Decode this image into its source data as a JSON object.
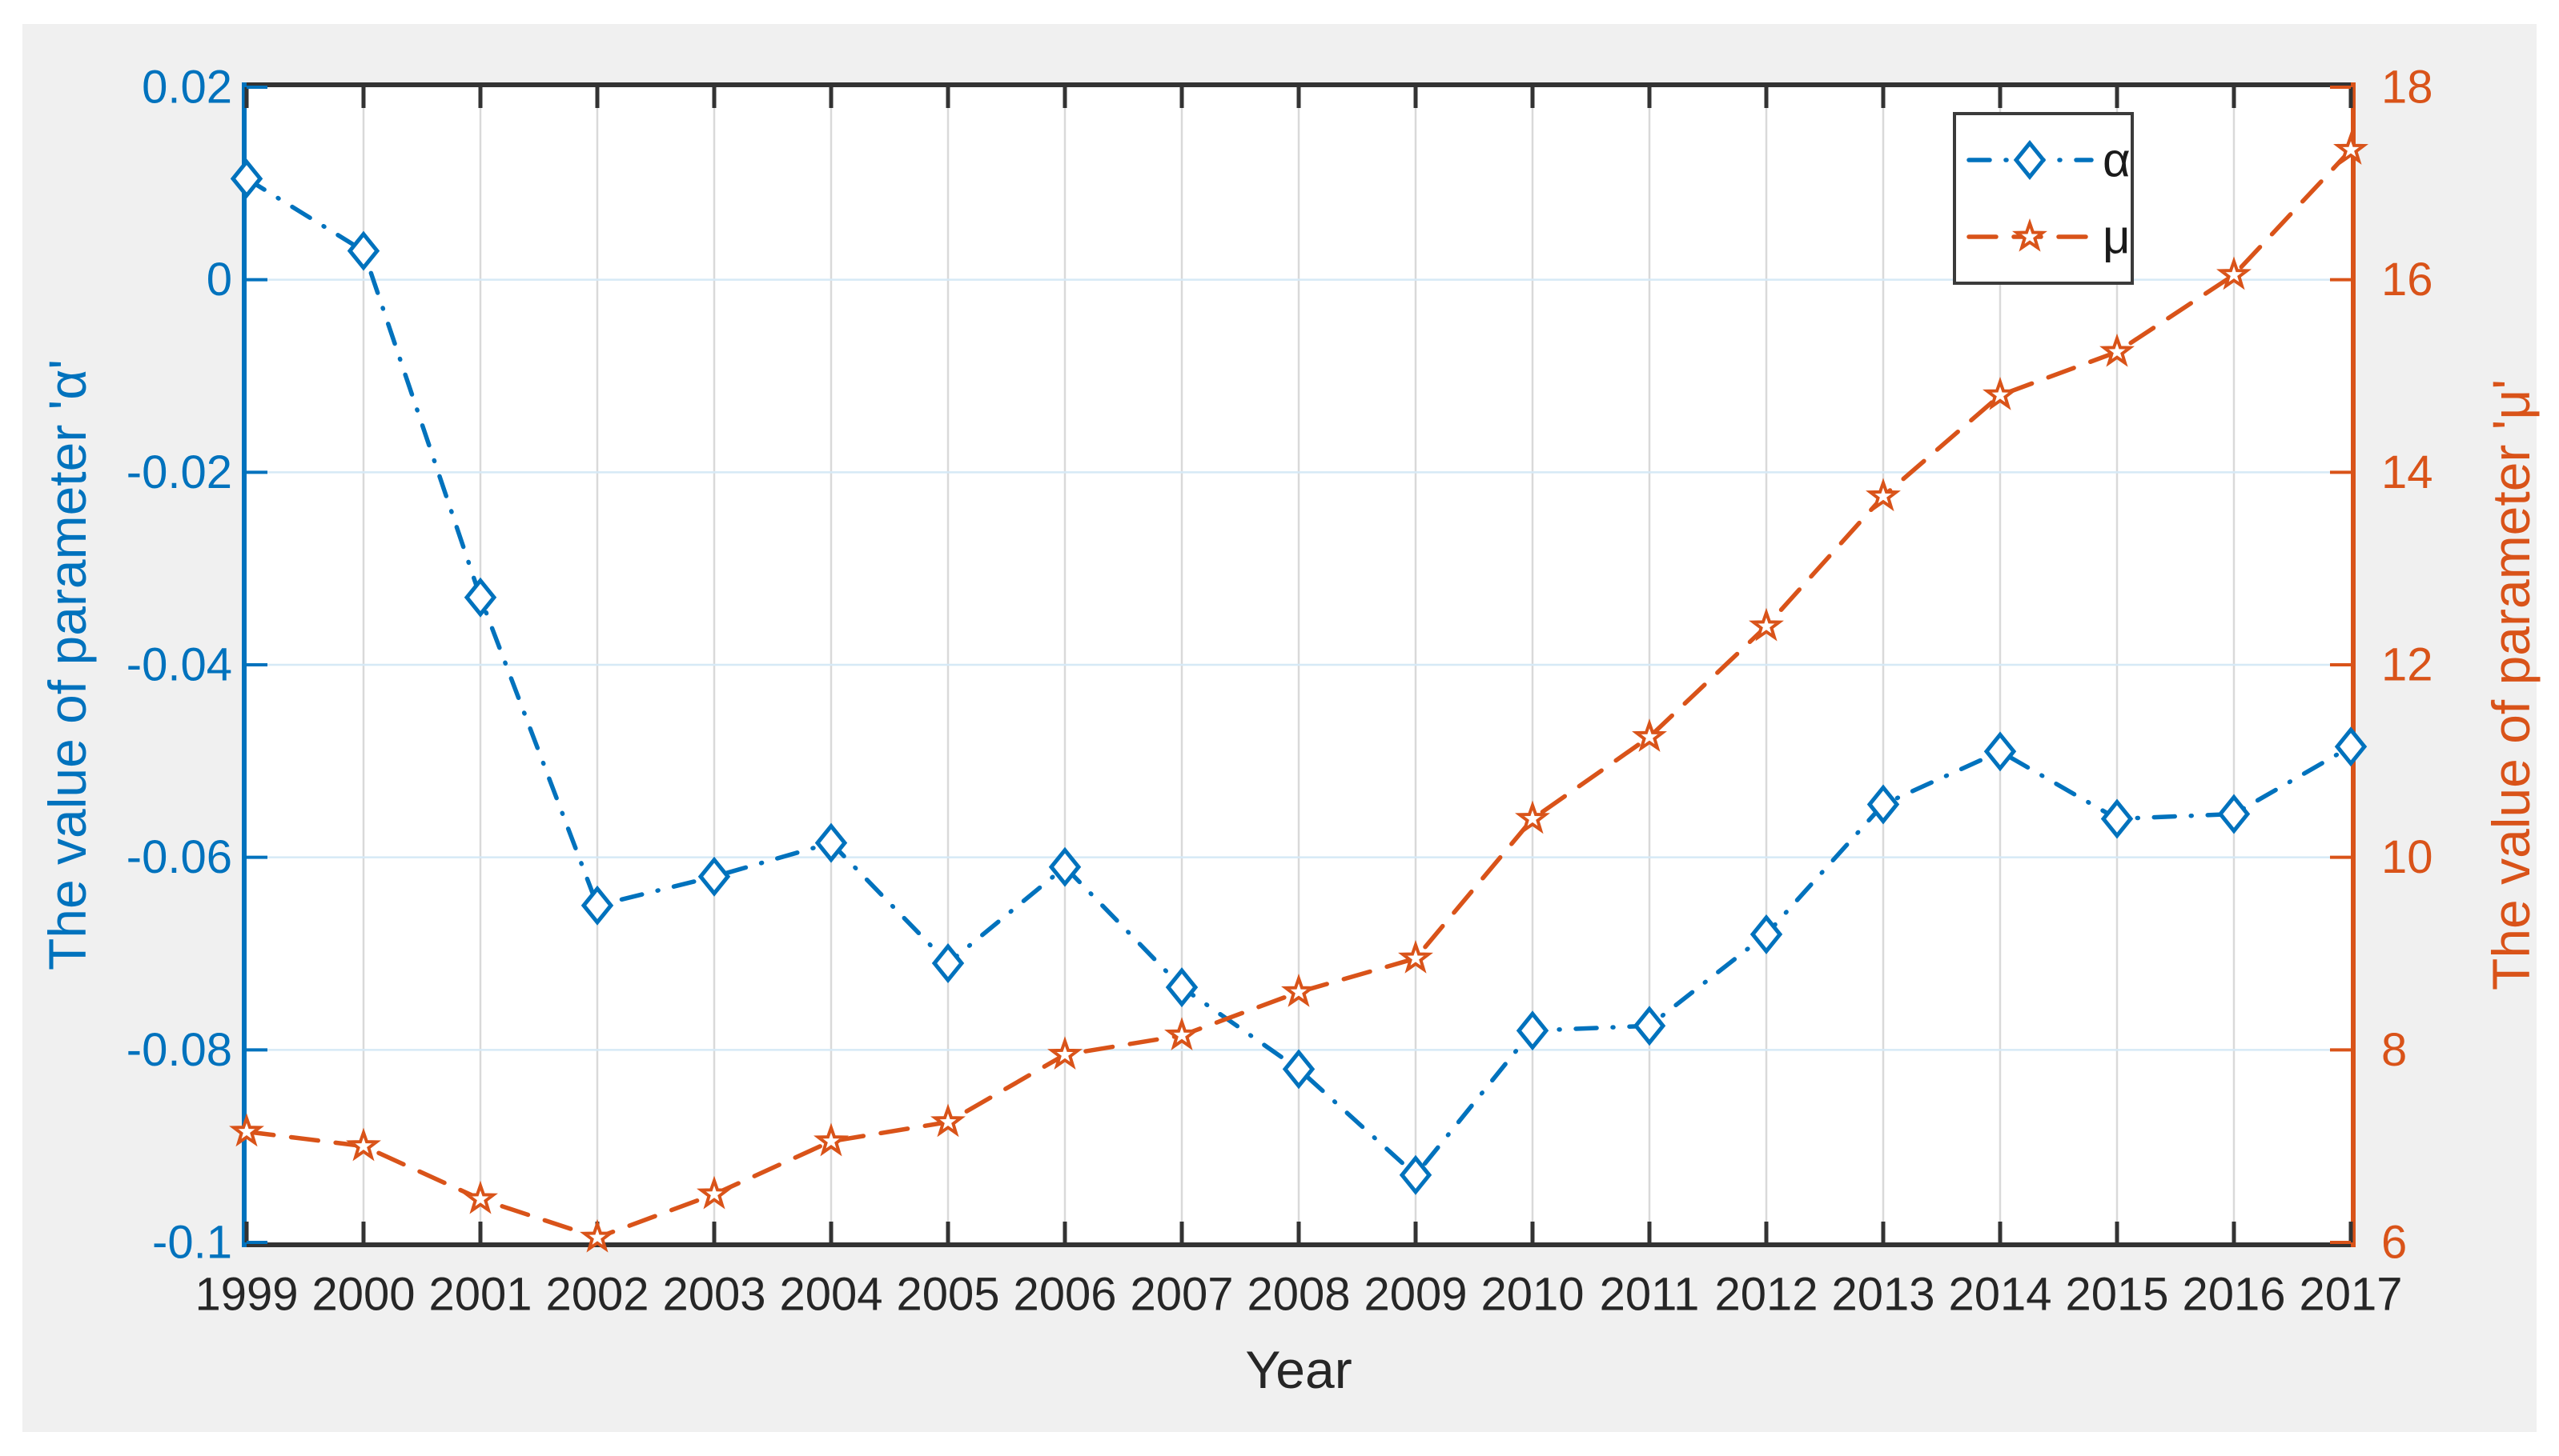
{
  "figure": {
    "page_background": "#ffffff",
    "figure_background": "#f0f0f0",
    "plot_background": "#ffffff"
  },
  "chart_data": {
    "type": "line",
    "title": "",
    "xlabel": "Year",
    "x": [
      1999,
      2000,
      2001,
      2002,
      2003,
      2004,
      2005,
      2006,
      2007,
      2008,
      2009,
      2010,
      2011,
      2012,
      2013,
      2014,
      2015,
      2016,
      2017
    ],
    "x_tick_labels": [
      "1999",
      "2000",
      "2001",
      "2002",
      "2003",
      "2004",
      "2005",
      "2006",
      "2007",
      "2008",
      "2009",
      "2010",
      "2011",
      "2012",
      "2013",
      "2014",
      "2015",
      "2016",
      "2017"
    ],
    "series": [
      {
        "name": "α",
        "key": "alpha",
        "axis": "left",
        "color": "#0072BD",
        "line_style": "dash-dot",
        "marker": "diamond",
        "values": [
          0.0105,
          0.003,
          -0.033,
          -0.065,
          -0.062,
          -0.0585,
          -0.071,
          -0.061,
          -0.0735,
          -0.082,
          -0.093,
          -0.078,
          -0.0775,
          -0.068,
          -0.0545,
          -0.049,
          -0.056,
          -0.0555,
          -0.0485
        ]
      },
      {
        "name": "μ",
        "key": "mu",
        "axis": "right",
        "color": "#D95319",
        "line_style": "dashed",
        "marker": "pentagram",
        "values": [
          7.15,
          7.0,
          6.45,
          6.05,
          6.5,
          7.05,
          7.25,
          7.95,
          8.15,
          8.6,
          8.95,
          10.4,
          11.25,
          12.4,
          13.75,
          14.8,
          15.25,
          16.05,
          17.35
        ]
      }
    ],
    "left_axis": {
      "label": "The value of parameter 'α'",
      "color": "#0072BD",
      "min": -0.1,
      "max": 0.02,
      "ticks": [
        0.02,
        0,
        -0.02,
        -0.04,
        -0.06,
        -0.08,
        -0.1
      ],
      "tick_labels": [
        "0.02",
        "0",
        "-0.02",
        "-0.04",
        "-0.06",
        "-0.08",
        "-0.1"
      ]
    },
    "right_axis": {
      "label": "The value of parameter 'μ'",
      "color": "#D95319",
      "min": 6,
      "max": 18,
      "ticks": [
        18,
        16,
        14,
        12,
        10,
        8,
        6
      ],
      "tick_labels": [
        "18",
        "16",
        "14",
        "12",
        "10",
        "8",
        "6"
      ]
    },
    "grid": {
      "show": true,
      "vertical_color": "#d9d9d9",
      "horizontal_color": "#d6e9f6"
    },
    "legend": {
      "position": "top-right",
      "entries": [
        "α",
        "μ"
      ],
      "background": "#ffffff",
      "border_color": "#3b3b3b",
      "text_color": "#1a1a1a"
    },
    "axis_text_color": "#262626",
    "box_color": "#333333"
  }
}
